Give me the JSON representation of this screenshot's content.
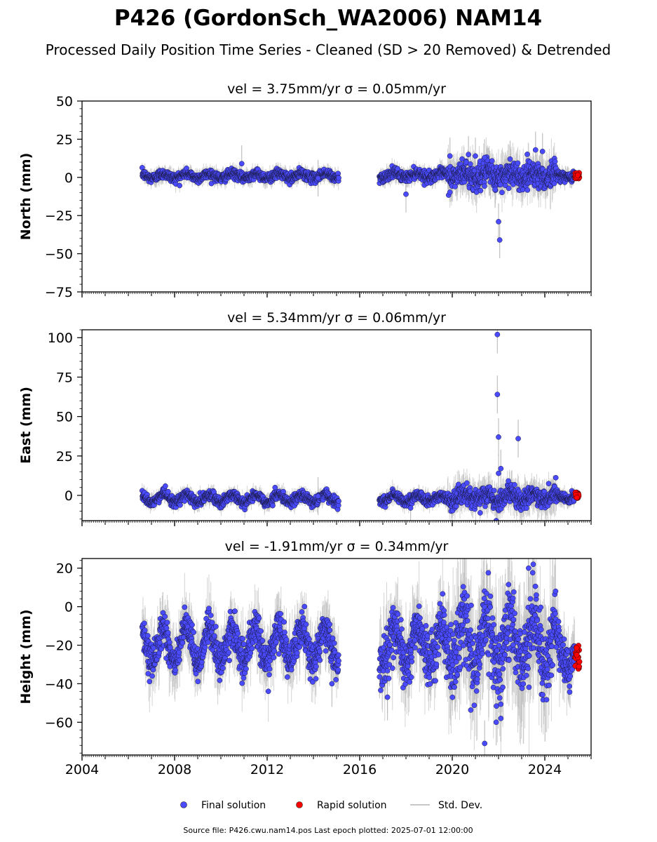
{
  "header": {
    "title": "P426 (GordonSch_WA2006) NAM14",
    "subtitle": "Processed Daily Position Time Series - Cleaned (SD > 20 Removed) & Detrended"
  },
  "legend": {
    "final": "Final solution",
    "rapid": "Rapid solution",
    "std": "Std. Dev."
  },
  "footer": {
    "text": "Source file: P426.cwu.nam14.pos  Last epoch plotted: 2025-07-01 12:00:00"
  },
  "colors": {
    "final": "#4a4aff",
    "rapid": "#ff0000",
    "std": "#b0b0b0"
  },
  "chart_data": [
    {
      "type": "scatter",
      "title": "vel = 3.75mm/yr   σ = 0.05mm/yr",
      "ylabel": "North (mm)",
      "xlim": [
        2004.0,
        2026.0
      ],
      "ylim": [
        -75,
        50
      ],
      "yticks": [
        50,
        25,
        0,
        -25,
        -50,
        -75
      ],
      "xticks": [
        2004,
        2008,
        2012,
        2016,
        2020,
        2024
      ],
      "segments": [
        {
          "x": [
            2006.6,
            2015.1
          ],
          "mean": 1.0,
          "amp": 1.5,
          "noise": 1.5
        },
        {
          "x": [
            2016.85,
            2019.8
          ],
          "mean": 1.5,
          "amp": 1.5,
          "noise": 1.6
        },
        {
          "x": [
            2019.8,
            2024.5
          ],
          "mean": 1.5,
          "amp": 2.0,
          "noise": 4.0
        },
        {
          "x": [
            2024.5,
            2025.3
          ],
          "mean": 1.0,
          "amp": 1.0,
          "noise": 1.5
        }
      ],
      "outliers": [
        [
          2010.9,
          9
        ],
        [
          2014.2,
          -0.5
        ],
        [
          2018.0,
          -11
        ],
        [
          2019.9,
          14
        ],
        [
          2020.7,
          15
        ],
        [
          2021.0,
          14
        ],
        [
          2021.4,
          13
        ],
        [
          2021.85,
          -8
        ],
        [
          2022.0,
          -29
        ],
        [
          2022.05,
          -41
        ],
        [
          2022.5,
          12
        ],
        [
          2023.6,
          18
        ],
        [
          2023.9,
          17
        ]
      ],
      "rapid": {
        "x": [
          2025.3,
          2025.5
        ],
        "y": [
          -1,
          3
        ]
      }
    },
    {
      "type": "scatter",
      "title": "vel = 5.34mm/yr   σ = 0.06mm/yr",
      "ylabel": "East (mm)",
      "xlim": [
        2004.0,
        2026.0
      ],
      "ylim": [
        -16,
        105
      ],
      "yticks": [
        100,
        75,
        50,
        25,
        0
      ],
      "xticks": [
        2004,
        2008,
        2012,
        2016,
        2020,
        2024
      ],
      "segments": [
        {
          "x": [
            2006.6,
            2015.1
          ],
          "mean": -2.0,
          "amp": 2.5,
          "noise": 1.5
        },
        {
          "x": [
            2016.85,
            2019.8
          ],
          "mean": -2.0,
          "amp": 2.0,
          "noise": 1.5
        },
        {
          "x": [
            2019.8,
            2024.5
          ],
          "mean": -1.0,
          "amp": 2.5,
          "noise": 3.0
        },
        {
          "x": [
            2024.5,
            2025.3
          ],
          "mean": -1.0,
          "amp": 1.5,
          "noise": 1.5
        }
      ],
      "outliers": [
        [
          2021.95,
          102
        ],
        [
          2021.95,
          64
        ],
        [
          2022.0,
          37
        ],
        [
          2022.0,
          14
        ],
        [
          2022.1,
          17
        ],
        [
          2022.85,
          36
        ],
        [
          2021.9,
          -16
        ],
        [
          2018.2,
          -8
        ],
        [
          2014.2,
          -0.5
        ]
      ],
      "rapid": {
        "x": [
          2025.3,
          2025.5
        ],
        "y": [
          -2,
          2
        ]
      }
    },
    {
      "type": "scatter",
      "title": "vel = -1.91mm/yr   σ = 0.34mm/yr",
      "ylabel": "Height (mm)",
      "xlim": [
        2004.0,
        2026.0
      ],
      "ylim": [
        -77,
        25
      ],
      "yticks": [
        20,
        0,
        -20,
        -40,
        -60
      ],
      "xticks": [
        2004,
        2008,
        2012,
        2016,
        2020,
        2024
      ],
      "segments": [
        {
          "x": [
            2006.6,
            2015.1
          ],
          "mean": -20.0,
          "amp": 9.0,
          "noise": 4.5
        },
        {
          "x": [
            2016.85,
            2019.8
          ],
          "mean": -20.0,
          "amp": 10.0,
          "noise": 6.0
        },
        {
          "x": [
            2019.8,
            2024.5
          ],
          "mean": -18.0,
          "amp": 13.0,
          "noise": 9.0
        },
        {
          "x": [
            2024.5,
            2025.3
          ],
          "mean": -25.0,
          "amp": 8.0,
          "noise": 5.0
        }
      ],
      "outliers": [
        [
          2021.4,
          -71
        ],
        [
          2021.9,
          -60
        ],
        [
          2022.1,
          -58
        ],
        [
          2023.3,
          20
        ],
        [
          2023.5,
          22
        ],
        [
          2014.8,
          -40
        ],
        [
          2017.2,
          -47
        ]
      ],
      "rapid": {
        "x": [
          2025.3,
          2025.5
        ],
        "y": [
          -33,
          -19
        ]
      }
    }
  ]
}
